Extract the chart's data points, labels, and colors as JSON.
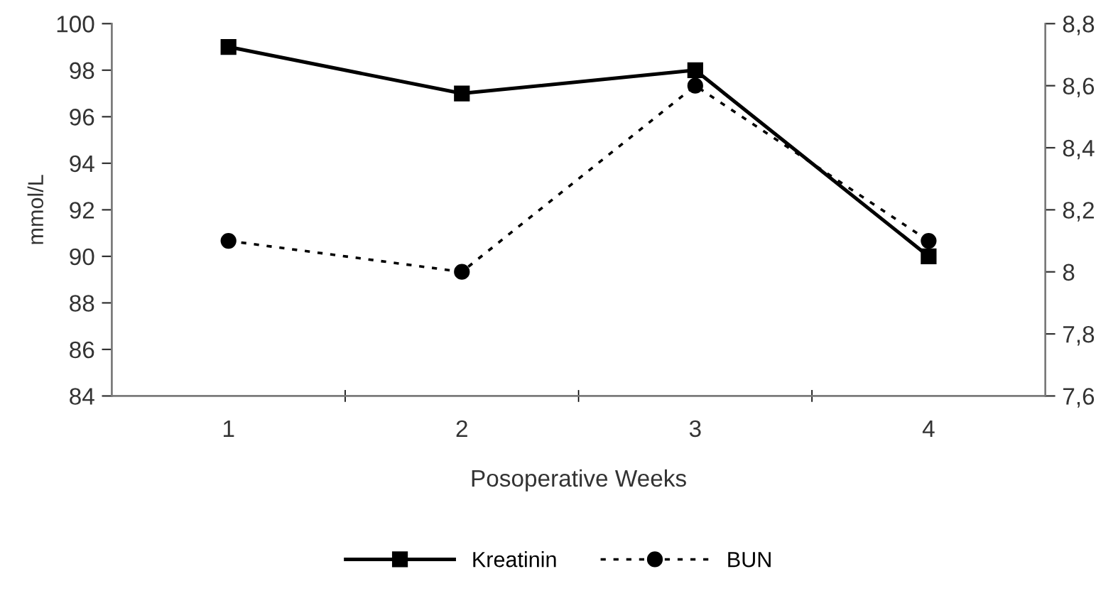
{
  "chart_data": {
    "type": "line",
    "xlabel": "Posoperative Weeks",
    "ylabel": "mmol/L",
    "categories": [
      "1",
      "2",
      "3",
      "4"
    ],
    "series": [
      {
        "name": "Kreatinin",
        "color": "#000000",
        "values": [
          99,
          97,
          98,
          90
        ],
        "marker": "square",
        "line_style": "solid"
      },
      {
        "name": "BUN",
        "color": "#000000",
        "values": [
          8.1,
          8.0,
          8.6,
          8.1
        ],
        "marker": "circle",
        "line_style": "dotted",
        "axis": "y2"
      }
    ],
    "ylim": [
      84,
      100
    ],
    "yticks": [
      84,
      86,
      88,
      90,
      92,
      94,
      96,
      98,
      100
    ],
    "y2lim": [
      7.6,
      8.8
    ],
    "y2ticks": [
      {
        "value": 7.6,
        "label": "7,6"
      },
      {
        "value": 7.8,
        "label": "7,8"
      },
      {
        "value": 8,
        "label": "8"
      },
      {
        "value": 8.2,
        "label": "8,2"
      },
      {
        "value": 8.4,
        "label": "8,4"
      },
      {
        "value": 8.6,
        "label": "8,6"
      },
      {
        "value": 8.8,
        "label": "8,8"
      }
    ],
    "grid": false,
    "legend": "bottom"
  }
}
